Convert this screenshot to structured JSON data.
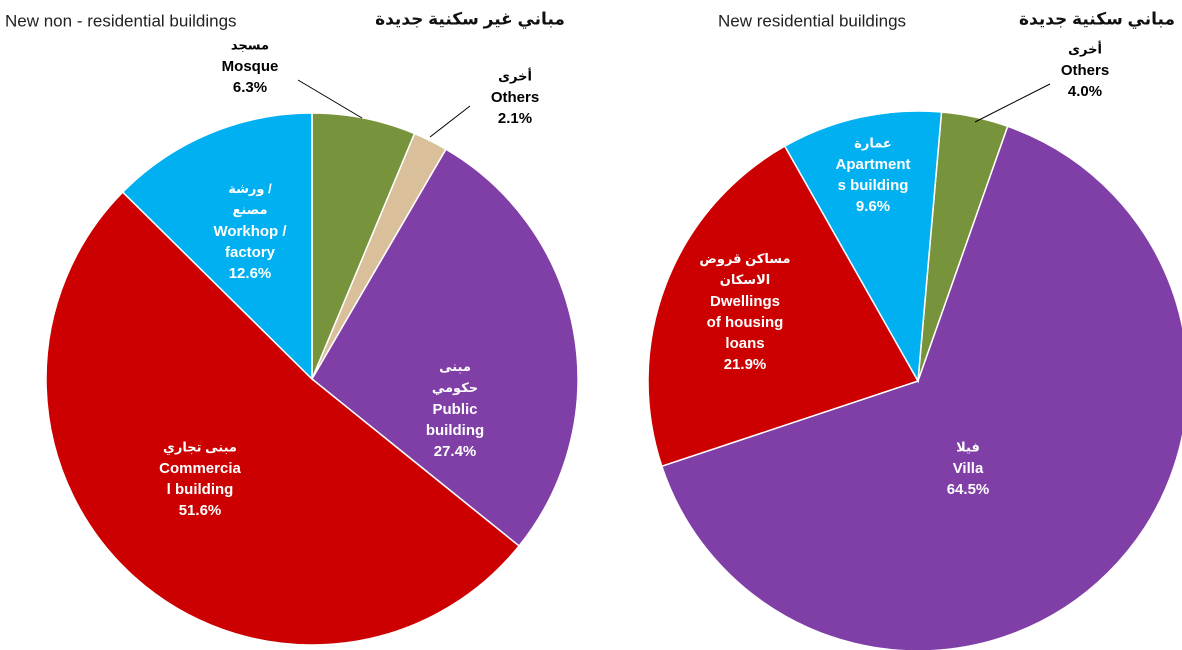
{
  "chart_data": [
    {
      "type": "pie",
      "title": "New non - residential buildings",
      "title_ar": "مباني غير سكنية جديدة",
      "start_angle": 0,
      "categories": [
        "Mosque",
        "Others",
        "Public building",
        "Commercia l building",
        "Workhop / factory"
      ],
      "categories_ar": [
        "مسجد",
        "أخرى",
        "مبنى حكومي",
        "مبنى تجاري",
        "ورشة / مصنع"
      ],
      "values": [
        6.3,
        2.1,
        27.4,
        51.6,
        12.6
      ],
      "value_labels": [
        "6.3%",
        "2.1%",
        "27.4%",
        "51.6%",
        "12.6%"
      ],
      "colors": [
        "#77933c",
        "#d9c09a",
        "#7f3fa6",
        "#cc0000",
        "#00b0f0"
      ]
    },
    {
      "type": "pie",
      "title": "New residential buildings",
      "title_ar": "مباني سكنية جديدة",
      "start_angle": 5,
      "categories": [
        "Others",
        "Villa",
        "Dwellings of housing loans",
        "Apartment s building"
      ],
      "categories_ar": [
        "أخرى",
        "فيلا",
        "مساكن قروض الاسكان",
        "عمارة"
      ],
      "values": [
        4.0,
        64.5,
        21.9,
        9.6
      ],
      "value_labels": [
        "4.0%",
        "64.5%",
        "21.9%",
        "9.6%"
      ],
      "colors": [
        "#77933c",
        "#7f3fa6",
        "#cc0000",
        "#00b0f0"
      ]
    }
  ]
}
